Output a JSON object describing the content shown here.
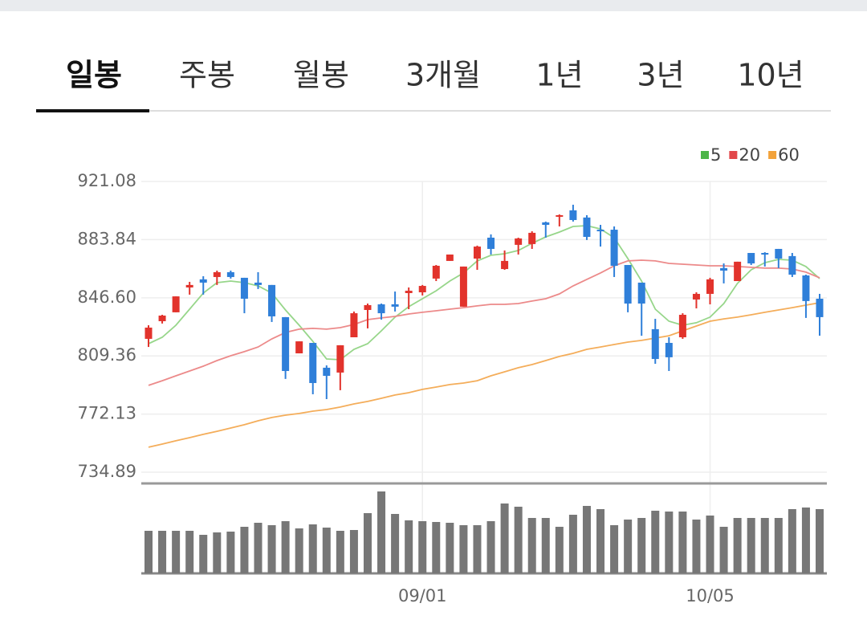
{
  "tabs": [
    "일봉",
    "주봉",
    "월봉",
    "3개월",
    "1년",
    "3년",
    "10년"
  ],
  "active_tab": 0,
  "chart_data": {
    "type": "candlestick",
    "categories": [
      null,
      null,
      null,
      null,
      null,
      null,
      null,
      null,
      null,
      null,
      null,
      null,
      null,
      null,
      null,
      null,
      null,
      null,
      null,
      null,
      "09/01",
      null,
      null,
      null,
      null,
      null,
      null,
      null,
      null,
      null,
      null,
      null,
      null,
      null,
      null,
      null,
      null,
      null,
      null,
      null,
      null,
      "10/05",
      null,
      null,
      null,
      null,
      null,
      null,
      null,
      null
    ],
    "open": [
      820.3,
      831.6,
      837.3,
      853.2,
      858.4,
      859.9,
      863.0,
      859.4,
      856.3,
      854.8,
      834.2,
      811.0,
      817.7,
      801.8,
      798.7,
      821.3,
      838.8,
      842.4,
      842.4,
      849.6,
      850.1,
      858.9,
      870.2,
      840.9,
      871.7,
      885.1,
      865.0,
      880.5,
      881.0,
      894.9,
      898.5,
      902.6,
      898.0,
      890.2,
      890.2,
      867.6,
      856.3,
      826.5,
      817.7,
      821.3,
      845.5,
      849.1,
      865.6,
      857.3,
      875.3,
      875.3,
      877.9,
      873.3,
      860.9,
      846.0
    ],
    "high": [
      829.0,
      835.7,
      847.5,
      856.8,
      860.4,
      864.0,
      864.0,
      859.4,
      863.0,
      854.8,
      834.2,
      818.7,
      817.7,
      803.3,
      816.2,
      837.8,
      842.9,
      842.9,
      850.6,
      853.2,
      854.8,
      867.6,
      874.3,
      866.6,
      880.0,
      887.2,
      876.9,
      885.1,
      889.2,
      895.4,
      900.0,
      906.2,
      899.5,
      893.3,
      892.3,
      867.6,
      856.3,
      833.1,
      821.3,
      836.7,
      850.1,
      859.4,
      868.6,
      869.7,
      875.3,
      875.8,
      877.9,
      875.3,
      861.4,
      849.1
    ],
    "low": [
      815.1,
      830.1,
      837.3,
      848.6,
      848.6,
      854.8,
      858.9,
      836.7,
      852.2,
      831.1,
      794.6,
      811.0,
      784.8,
      781.7,
      787.4,
      821.3,
      827.0,
      832.6,
      837.8,
      839.3,
      848.1,
      857.3,
      870.2,
      840.9,
      864.5,
      874.3,
      864.5,
      874.3,
      877.9,
      885.1,
      892.3,
      895.4,
      883.6,
      879.4,
      859.9,
      837.3,
      822.3,
      804.3,
      799.7,
      820.3,
      839.8,
      842.4,
      855.8,
      857.3,
      867.6,
      866.6,
      865.6,
      859.9,
      833.7,
      822.3
    ],
    "close": [
      827.5,
      835.2,
      847.5,
      854.8,
      856.3,
      863.0,
      859.9,
      846.0,
      854.8,
      834.7,
      799.7,
      818.7,
      792.0,
      796.6,
      816.2,
      836.7,
      841.9,
      836.7,
      840.9,
      851.1,
      854.2,
      867.1,
      874.3,
      866.6,
      879.4,
      877.9,
      870.2,
      884.6,
      888.2,
      893.3,
      899.5,
      896.4,
      885.6,
      889.2,
      867.1,
      842.9,
      842.9,
      807.4,
      808.5,
      835.7,
      849.1,
      858.4,
      864.0,
      869.7,
      868.6,
      874.3,
      871.7,
      861.4,
      844.5,
      834.2
    ],
    "up_color": "#e2332c",
    "down_color": "#2f7fd9",
    "series": [
      {
        "name": "5",
        "color": "#4cb548",
        "line_color": "#97d68a",
        "values": [
          817.2,
          821.3,
          829.0,
          839.3,
          849.6,
          856.3,
          857.3,
          856.3,
          854.2,
          849.6,
          838.8,
          829.0,
          818.7,
          807.4,
          806.9,
          813.6,
          817.2,
          825.4,
          834.2,
          840.9,
          846.0,
          851.1,
          857.3,
          862.5,
          870.2,
          873.8,
          874.8,
          876.9,
          881.5,
          885.6,
          888.7,
          892.3,
          892.8,
          890.7,
          885.1,
          871.7,
          857.3,
          839.3,
          831.6,
          829.0,
          830.6,
          834.2,
          842.9,
          855.8,
          864.5,
          869.1,
          871.2,
          870.7,
          866.6,
          858.9
        ]
      },
      {
        "name": "20",
        "color": "#e2474a",
        "line_color": "#ec8a8a",
        "values": [
          790.5,
          793.5,
          796.6,
          799.7,
          802.8,
          806.4,
          809.5,
          812.1,
          815.1,
          820.3,
          824.4,
          826.5,
          827.0,
          826.5,
          827.5,
          829.5,
          832.6,
          833.7,
          834.7,
          836.2,
          837.3,
          838.3,
          839.3,
          840.3,
          841.4,
          842.4,
          842.4,
          842.9,
          844.5,
          846.0,
          849.1,
          854.2,
          858.4,
          862.5,
          867.1,
          870.2,
          870.7,
          870.2,
          868.6,
          868.1,
          867.6,
          867.1,
          867.1,
          866.6,
          866.1,
          865.6,
          865.6,
          865.0,
          863.0,
          859.4
        ]
      },
      {
        "name": "60",
        "color": "#f2a23a",
        "line_color": "#f4ad5a",
        "values": [
          750.9,
          752.9,
          755.0,
          757.0,
          759.1,
          761.1,
          763.2,
          765.3,
          767.8,
          769.9,
          771.4,
          772.5,
          774.0,
          775.0,
          776.6,
          778.6,
          780.2,
          782.2,
          784.3,
          785.8,
          787.9,
          789.4,
          791.0,
          792.0,
          793.5,
          796.6,
          799.2,
          801.8,
          803.8,
          806.4,
          809.0,
          811.0,
          813.6,
          815.1,
          816.7,
          818.2,
          819.3,
          820.8,
          822.3,
          825.4,
          828.5,
          831.6,
          833.1,
          834.2,
          835.7,
          837.3,
          838.8,
          840.3,
          841.9,
          843.4
        ]
      }
    ],
    "volume": [
      53,
      53,
      53,
      53,
      48,
      51,
      52,
      58,
      63,
      60,
      65,
      56,
      61,
      57,
      53,
      54,
      75,
      102,
      74,
      66,
      65,
      64,
      63,
      60,
      60,
      65,
      87,
      83,
      69,
      69,
      58,
      73,
      84,
      80,
      60,
      67,
      69,
      78,
      77,
      77,
      67,
      72,
      58,
      69,
      69,
      69,
      69,
      80,
      82,
      80
    ],
    "volume_color": "#777777",
    "ylim": [
      727.7,
      921.08
    ],
    "yticks": [
      734.89,
      772.13,
      809.36,
      {
        "value": 846.6,
        "label": "846.60"
      },
      883.84,
      921.08
    ],
    "vlim": [
      0,
      110
    ],
    "grid": true
  }
}
